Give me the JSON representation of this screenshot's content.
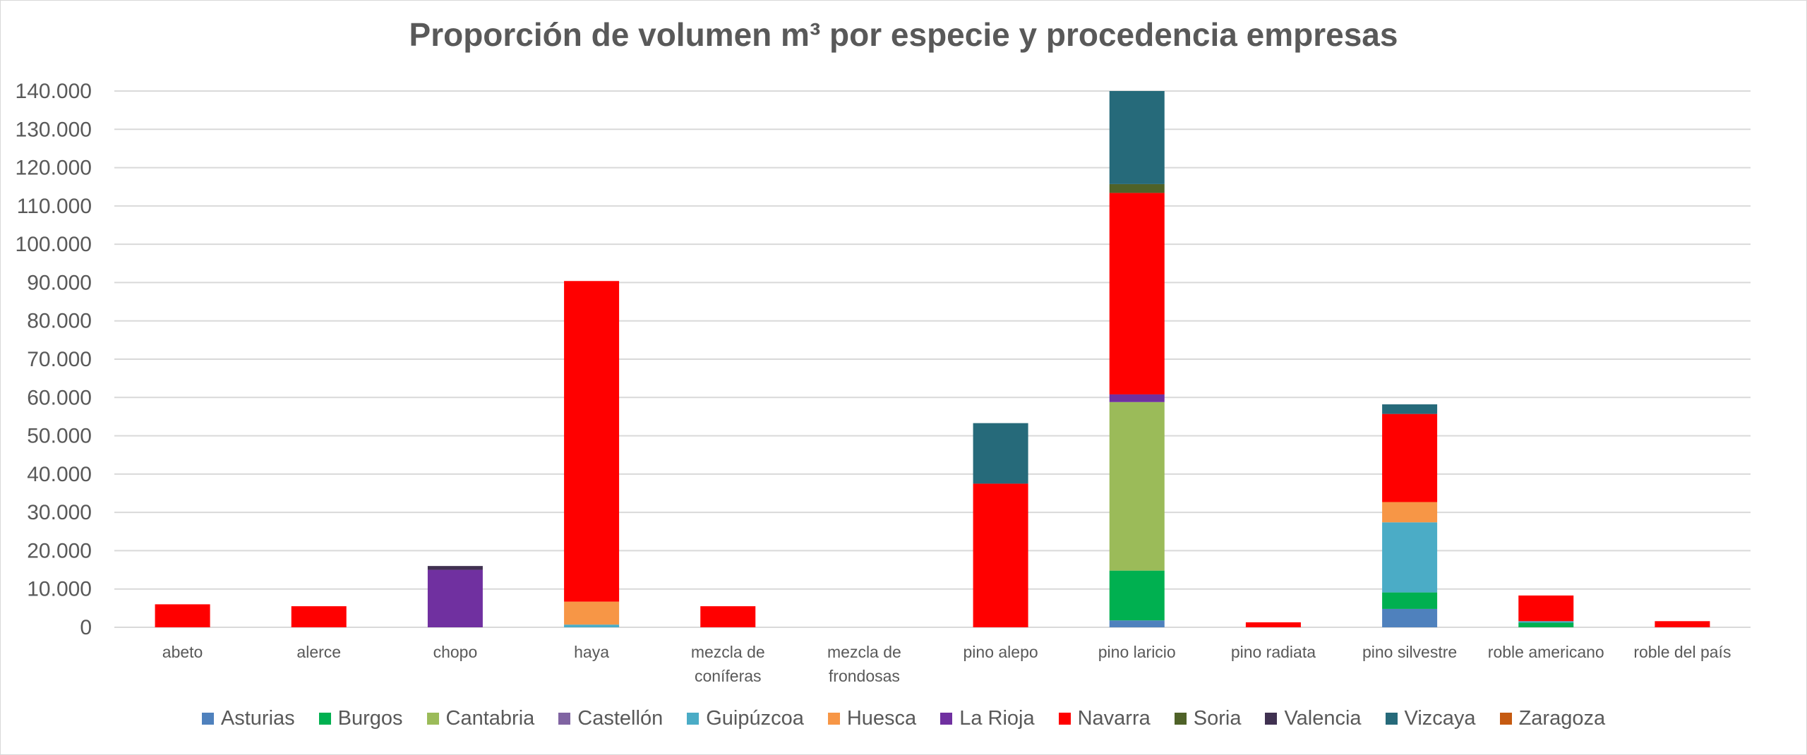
{
  "chart_data": {
    "type": "bar",
    "stacked": true,
    "title": "Proporción de volumen m³ por especie y procedencia empresas",
    "xlabel": "",
    "ylabel": "",
    "ylim": [
      0,
      140000
    ],
    "yticks": [
      {
        "value": 0,
        "label": "0"
      },
      {
        "value": 10000,
        "label": "10.000"
      },
      {
        "value": 20000,
        "label": "20.000"
      },
      {
        "value": 30000,
        "label": "30.000"
      },
      {
        "value": 40000,
        "label": "40.000"
      },
      {
        "value": 50000,
        "label": "50.000"
      },
      {
        "value": 60000,
        "label": "60.000"
      },
      {
        "value": 70000,
        "label": "70.000"
      },
      {
        "value": 80000,
        "label": "80.000"
      },
      {
        "value": 90000,
        "label": "90.000"
      },
      {
        "value": 100000,
        "label": "100.000"
      },
      {
        "value": 110000,
        "label": "110.000"
      },
      {
        "value": 120000,
        "label": "120.000"
      },
      {
        "value": 130000,
        "label": "130.000"
      },
      {
        "value": 140000,
        "label": "140.000"
      }
    ],
    "grid": true,
    "legend_position": "bottom",
    "categories": [
      [
        "abeto"
      ],
      [
        "alerce"
      ],
      [
        "chopo"
      ],
      [
        "haya"
      ],
      [
        "mezcla de",
        "coníferas"
      ],
      [
        "mezcla de",
        "frondosas"
      ],
      [
        "pino alepo"
      ],
      [
        "pino laricio"
      ],
      [
        "pino radiata"
      ],
      [
        "pino silvestre"
      ],
      [
        "roble americano"
      ],
      [
        "roble del país"
      ]
    ],
    "series": [
      {
        "name": "Asturias",
        "color": "#4f81bd",
        "values": [
          0,
          0,
          0,
          0,
          0,
          0,
          0,
          1800,
          0,
          4800,
          0,
          0
        ]
      },
      {
        "name": "Burgos",
        "color": "#00b050",
        "values": [
          0,
          0,
          0,
          0,
          0,
          0,
          0,
          13000,
          0,
          4300,
          1200,
          0
        ]
      },
      {
        "name": "Cantabria",
        "color": "#9bbb59",
        "values": [
          0,
          0,
          0,
          0,
          0,
          0,
          0,
          44000,
          0,
          0,
          0,
          0
        ]
      },
      {
        "name": "Castellón",
        "color": "#8064a2",
        "values": [
          0,
          0,
          0,
          0,
          0,
          0,
          0,
          0,
          0,
          0,
          0,
          0
        ]
      },
      {
        "name": "Guipúzcoa",
        "color": "#4bacc6",
        "values": [
          0,
          0,
          0,
          700,
          0,
          0,
          0,
          0,
          0,
          18300,
          400,
          0
        ]
      },
      {
        "name": "Huesca",
        "color": "#f79646",
        "values": [
          0,
          0,
          0,
          6000,
          0,
          0,
          0,
          0,
          0,
          5300,
          0,
          0
        ]
      },
      {
        "name": "La Rioja",
        "color": "#7030a0",
        "values": [
          0,
          0,
          15000,
          0,
          0,
          0,
          0,
          2000,
          0,
          0,
          0,
          0
        ]
      },
      {
        "name": "Navarra",
        "color": "#ff0000",
        "values": [
          6000,
          5500,
          0,
          83700,
          5500,
          0,
          37500,
          52600,
          1300,
          23000,
          6700,
          1600
        ]
      },
      {
        "name": "Soria",
        "color": "#4f6228",
        "values": [
          0,
          0,
          0,
          0,
          0,
          0,
          0,
          2300,
          0,
          0,
          0,
          0
        ]
      },
      {
        "name": "Valencia",
        "color": "#403151",
        "values": [
          0,
          0,
          1000,
          0,
          0,
          0,
          0,
          0,
          0,
          0,
          0,
          0
        ]
      },
      {
        "name": "Vizcaya",
        "color": "#266a7a",
        "values": [
          0,
          0,
          0,
          0,
          0,
          0,
          15800,
          24300,
          0,
          2500,
          0,
          0
        ]
      },
      {
        "name": "Zaragoza",
        "color": "#c55a11",
        "values": [
          0,
          0,
          0,
          0,
          0,
          0,
          0,
          0,
          0,
          0,
          0,
          0
        ]
      }
    ],
    "gridline_color": "#d9d9d9"
  }
}
